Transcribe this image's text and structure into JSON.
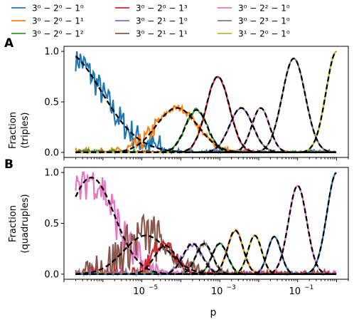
{
  "figure": {
    "xlabel": "p",
    "x_ticks": [
      {
        "value": 1e-05,
        "label": "10",
        "exp": "−5"
      },
      {
        "value": 0.001,
        "label": "10",
        "exp": "−3"
      },
      {
        "value": 0.1,
        "label": "10",
        "exp": "−1"
      }
    ]
  },
  "legend": [
    {
      "label": "3⁰ − 2⁰ − 1⁰",
      "color": "#1f77b4"
    },
    {
      "label": "3⁰ − 2⁰ − 1¹",
      "color": "#ff7f0e"
    },
    {
      "label": "3⁰ − 2⁰ − 1²",
      "color": "#2ca02c"
    },
    {
      "label": "3⁰ − 2⁰ − 1³",
      "color": "#d62728"
    },
    {
      "label": "3⁰ − 2¹ − 1⁰",
      "color": "#9467bd"
    },
    {
      "label": "3⁰ − 2¹ − 1¹",
      "color": "#8c564b"
    },
    {
      "label": "3⁰ − 2² − 1⁰",
      "color": "#e377c2"
    },
    {
      "label": "3⁰ − 2³ − 1⁰",
      "color": "#7f7f7f"
    },
    {
      "label": "3¹ − 2⁰ − 1⁰",
      "color": "#bcbd22"
    }
  ],
  "chart_data": [
    {
      "type": "line",
      "panel_label": "A",
      "ylabel": [
        "Fraction",
        "(triples)"
      ],
      "xscale": "log",
      "xlim": [
        1e-07,
        2.0
      ],
      "ylim": [
        -0.05,
        1.05
      ],
      "yticks": [
        0.0,
        0.5,
        1.0
      ],
      "fit_style": "black dashed",
      "series": [
        {
          "name": "3⁰ − 2⁰ − 1⁰",
          "color": "#1f77b4",
          "log10_p_peak": -7.0,
          "peak": 1.0,
          "width": 1.35,
          "noise": 0.05
        },
        {
          "name": "3⁰ − 2⁰ − 1¹",
          "color": "#ff7f0e",
          "log10_p_peak": -4.1,
          "peak": 0.44,
          "width": 0.75,
          "noise": 0.03
        },
        {
          "name": "3⁰ − 2⁰ − 1²",
          "color": "#2ca02c",
          "log10_p_peak": -3.6,
          "peak": 0.42,
          "width": 0.4,
          "noise": 0.02
        },
        {
          "name": "3⁰ − 2⁰ − 1³",
          "color": "#d62728",
          "log10_p_peak": -3.05,
          "peak": 0.75,
          "width": 0.42,
          "noise": 0.01
        },
        {
          "name": "3⁰ − 2¹ − 1⁰",
          "color": "#9467bd",
          "log10_p_peak": -2.45,
          "peak": 0.44,
          "width": 0.42,
          "noise": 0.005
        },
        {
          "name": "3⁰ − 2² − 1⁰",
          "color": "#e377c2",
          "log10_p_peak": -1.95,
          "peak": 0.44,
          "width": 0.32,
          "noise": 0.0
        },
        {
          "name": "3⁰ − 2³ − 1⁰",
          "color": "#7f7f7f",
          "log10_p_peak": -1.1,
          "peak": 0.93,
          "width": 0.42,
          "noise": 0.0
        },
        {
          "name": "3¹ − 2⁰ − 1⁰",
          "color": "#bcbd22",
          "log10_p_peak": 0.0,
          "peak": 1.0,
          "width": 0.38,
          "noise": 0.0
        }
      ]
    },
    {
      "type": "line",
      "panel_label": "B",
      "ylabel": [
        "Fraction",
        "(quadruples)"
      ],
      "xscale": "log",
      "xlim": [
        1e-07,
        2.0
      ],
      "ylim": [
        -0.05,
        1.05
      ],
      "yticks": [
        0.0,
        0.5,
        1.0
      ],
      "fit_style": "black dashed",
      "series": [
        {
          "name": "3⁰ − 2² − 1⁰",
          "color": "#e377c2",
          "log10_p_peak": -6.3,
          "peak": 0.95,
          "width": 0.85,
          "noise": 0.07
        },
        {
          "name": "3⁰ − 2¹ − 1¹",
          "color": "#8c564b",
          "log10_p_peak": -4.9,
          "peak": 0.38,
          "width": 0.8,
          "noise": 0.08
        },
        {
          "name": "3⁰ − 2⁰ − 1³",
          "color": "#d62728",
          "log10_p_peak": -4.4,
          "peak": 0.28,
          "width": 0.4,
          "noise": 0.05
        },
        {
          "name": "3⁰ − 2¹ − 1⁰",
          "color": "#9467bd",
          "log10_p_peak": -3.7,
          "peak": 0.3,
          "width": 0.35,
          "noise": 0.03
        },
        {
          "name": "3⁰ − 2³ − 1⁰",
          "color": "#7f7f7f",
          "log10_p_peak": -3.4,
          "peak": 0.3,
          "width": 0.3,
          "noise": 0.02
        },
        {
          "name": "3⁰ − 2⁰ − 1²",
          "color": "#2ca02c",
          "log10_p_peak": -3.0,
          "peak": 0.3,
          "width": 0.28,
          "noise": 0.01
        },
        {
          "name": "3⁰ − 2⁰ − 1¹",
          "color": "#ff7f0e",
          "log10_p_peak": -2.6,
          "peak": 0.43,
          "width": 0.28,
          "noise": 0.01
        },
        {
          "name": "3¹ − 2⁰ − 1⁰",
          "color": "#bcbd22",
          "log10_p_peak": -2.1,
          "peak": 0.38,
          "width": 0.25,
          "noise": 0.0
        },
        {
          "name": "3⁰ − 2⁰ − 1⁰",
          "color": "#1f77b4",
          "log10_p_peak": -1.6,
          "peak": 0.37,
          "width": 0.24,
          "noise": 0.0
        },
        {
          "name": "3⁰ − 2² − 1⁰",
          "color": "#e377c2",
          "log10_p_peak": -1.0,
          "peak": 0.87,
          "width": 0.33,
          "noise": 0.0
        },
        {
          "name": "3⁰ − 2⁰ − 1⁰",
          "color": "#1f77b4",
          "log10_p_peak": 0.0,
          "peak": 1.0,
          "width": 0.35,
          "noise": 0.0
        }
      ]
    }
  ]
}
